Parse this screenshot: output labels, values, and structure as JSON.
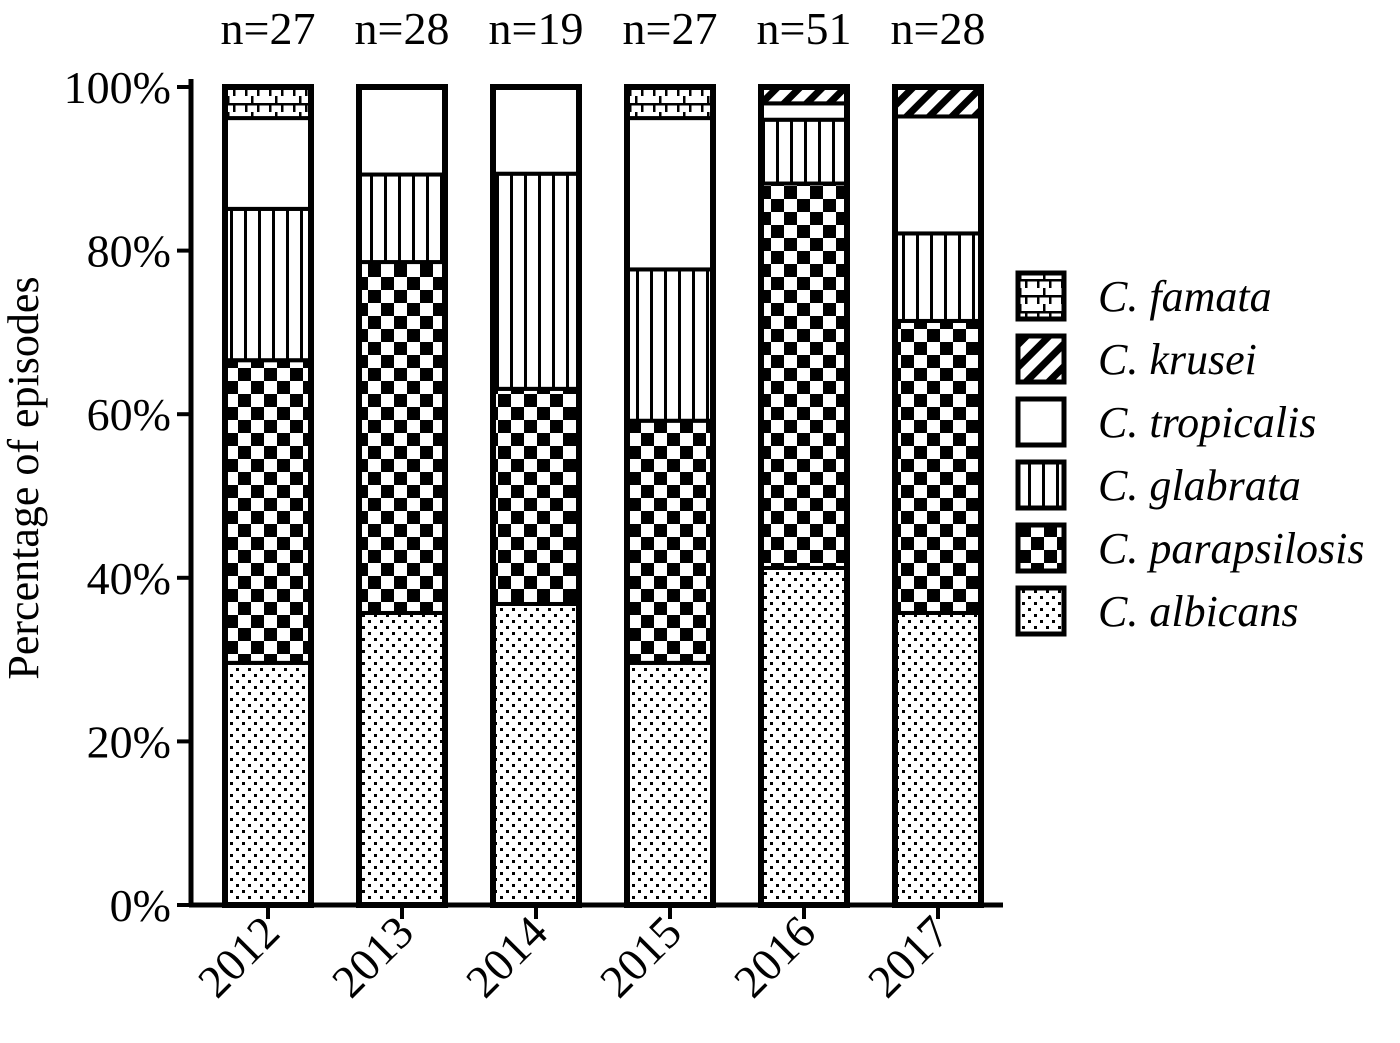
{
  "chart_data": {
    "type": "bar",
    "stacked": true,
    "categories": [
      "2012",
      "2013",
      "2014",
      "2015",
      "2016",
      "2017"
    ],
    "sample_sizes": [
      "n=27",
      "n=28",
      "n=19",
      "n=27",
      "n=51",
      "n=28"
    ],
    "ylabel": "Percentage of episodes",
    "ylim": [
      0,
      100
    ],
    "yticks": [
      "0%",
      "20%",
      "40%",
      "60%",
      "80%",
      "100%"
    ],
    "legend_position": "right",
    "series": [
      {
        "name": "C. albicans",
        "pattern": "dots",
        "values": [
          29.6,
          35.7,
          36.8,
          29.6,
          41.2,
          35.7
        ]
      },
      {
        "name": "C. parapsilosis",
        "pattern": "checker",
        "values": [
          37.0,
          42.9,
          26.3,
          29.6,
          47.0,
          35.7
        ]
      },
      {
        "name": "C. glabrata",
        "pattern": "vertical",
        "values": [
          18.5,
          10.7,
          26.3,
          18.5,
          7.8,
          10.7
        ]
      },
      {
        "name": "C. tropicalis",
        "pattern": "blank",
        "values": [
          11.1,
          10.7,
          10.6,
          18.5,
          2.0,
          14.3
        ]
      },
      {
        "name": "C. krusei",
        "pattern": "diagonal",
        "values": [
          0,
          0,
          0,
          0,
          2.0,
          3.6
        ]
      },
      {
        "name": "C. famata",
        "pattern": "brick",
        "values": [
          3.8,
          0,
          0,
          3.8,
          0,
          0
        ]
      }
    ],
    "legend_order": [
      "C. famata",
      "C. krusei",
      "C. tropicalis",
      "C. glabrata",
      "C. parapsilosis",
      "C. albicans"
    ]
  }
}
